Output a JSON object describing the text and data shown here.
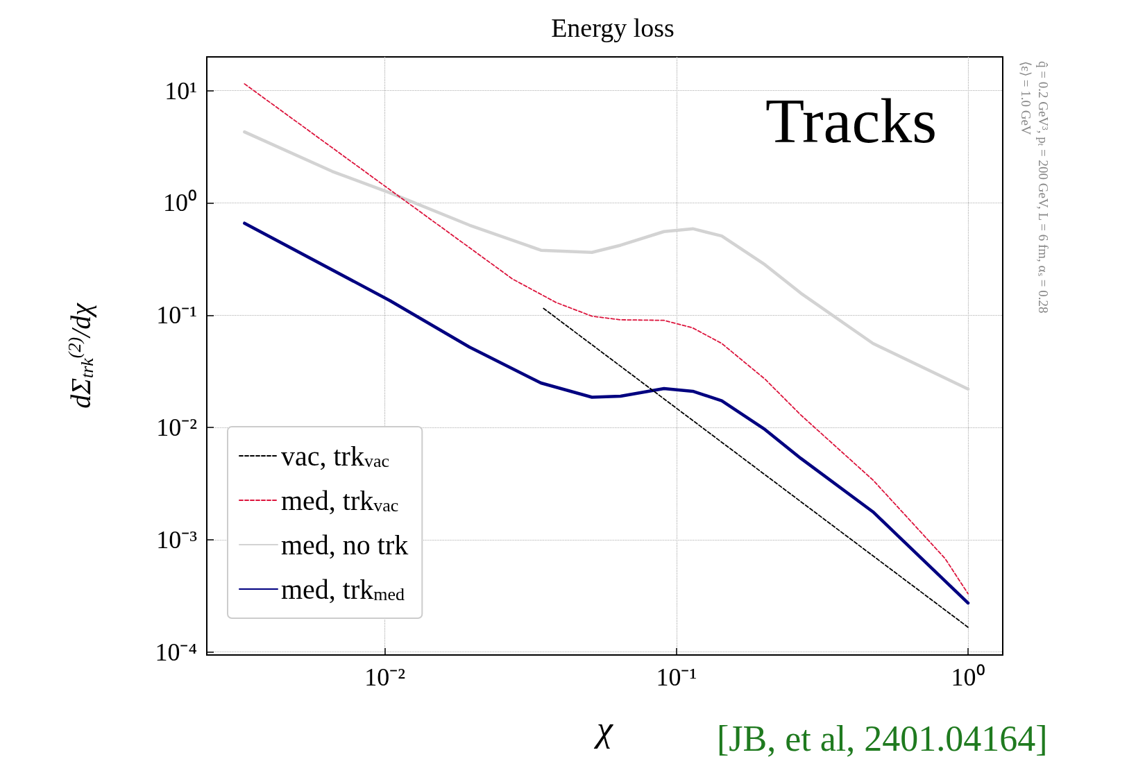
{
  "chart_data": {
    "type": "line",
    "title": "Energy loss",
    "xlabel": "χ",
    "ylabel": "dΣ$_{trk}$$^{(2)}$/dχ",
    "log": "xy",
    "grid": true,
    "legend": "bottom left",
    "xlim": [
      0.00245,
      1.315
    ],
    "ylim": [
      9.4e-05,
      20
    ],
    "xticks": [
      {
        "value": 0.01,
        "label": "10⁻²"
      },
      {
        "value": 0.1,
        "label": "10⁻¹"
      },
      {
        "value": 1,
        "label": "10⁰"
      }
    ],
    "yticks": [
      {
        "value": 0.0001,
        "label": "10⁻⁴"
      },
      {
        "value": 0.001,
        "label": "10⁻³"
      },
      {
        "value": 0.01,
        "label": "10⁻²"
      },
      {
        "value": 0.1,
        "label": "10⁻¹"
      },
      {
        "value": 1,
        "label": "10⁰"
      },
      {
        "value": 10,
        "label": "10¹"
      }
    ],
    "annotations": [
      "Tracks",
      "q̂ = 0.2 GeV³, p$_{t}$ = 200 GeV, L = 6 fm, α$_{s}$ = 0.28",
      "⟨ε⟩ = 1.0 GeV",
      "[JB, et al, 2401.04164]"
    ],
    "series": [
      {
        "name": "vac, trk$_{vac}$",
        "color": "#000000",
        "line_style": "dashed",
        "x": [
          0.035,
          1.0
        ],
        "values": [
          0.115,
          0.000166
        ]
      },
      {
        "name": "med, trk$_{vac}$",
        "color": "#dc143c",
        "line_style": "dashed",
        "x": [
          0.0033,
          0.0274,
          0.0386,
          0.0513,
          0.0643,
          0.0906,
          0.1138,
          0.143,
          0.201,
          0.267,
          0.472,
          0.834,
          1.0
        ],
        "values": [
          11.5,
          0.21,
          0.13,
          0.098,
          0.091,
          0.09,
          0.077,
          0.056,
          0.027,
          0.0129,
          0.0034,
          0.00068,
          0.00033
        ]
      },
      {
        "name": "med, no trk",
        "color": "#d3d3d3",
        "line_style": "solid",
        "x": [
          0.0033,
          0.0066,
          0.0104,
          0.0195,
          0.0343,
          0.0513,
          0.0643,
          0.0906,
          0.1138,
          0.143,
          0.201,
          0.267,
          0.472,
          1.0
        ],
        "values": [
          4.29,
          1.91,
          1.23,
          0.634,
          0.379,
          0.363,
          0.42,
          0.556,
          0.589,
          0.508,
          0.282,
          0.157,
          0.056,
          0.022
        ]
      },
      {
        "name": "med, trk$_{med}$",
        "color": "#000080",
        "line_style": "solid",
        "x": [
          0.0033,
          0.0104,
          0.0195,
          0.0343,
          0.0513,
          0.0643,
          0.0906,
          0.1138,
          0.143,
          0.201,
          0.267,
          0.472,
          1.0
        ],
        "values": [
          0.66,
          0.135,
          0.052,
          0.0249,
          0.0186,
          0.019,
          0.0222,
          0.021,
          0.0173,
          0.0096,
          0.0053,
          0.00177,
          0.000273
        ]
      }
    ]
  }
}
